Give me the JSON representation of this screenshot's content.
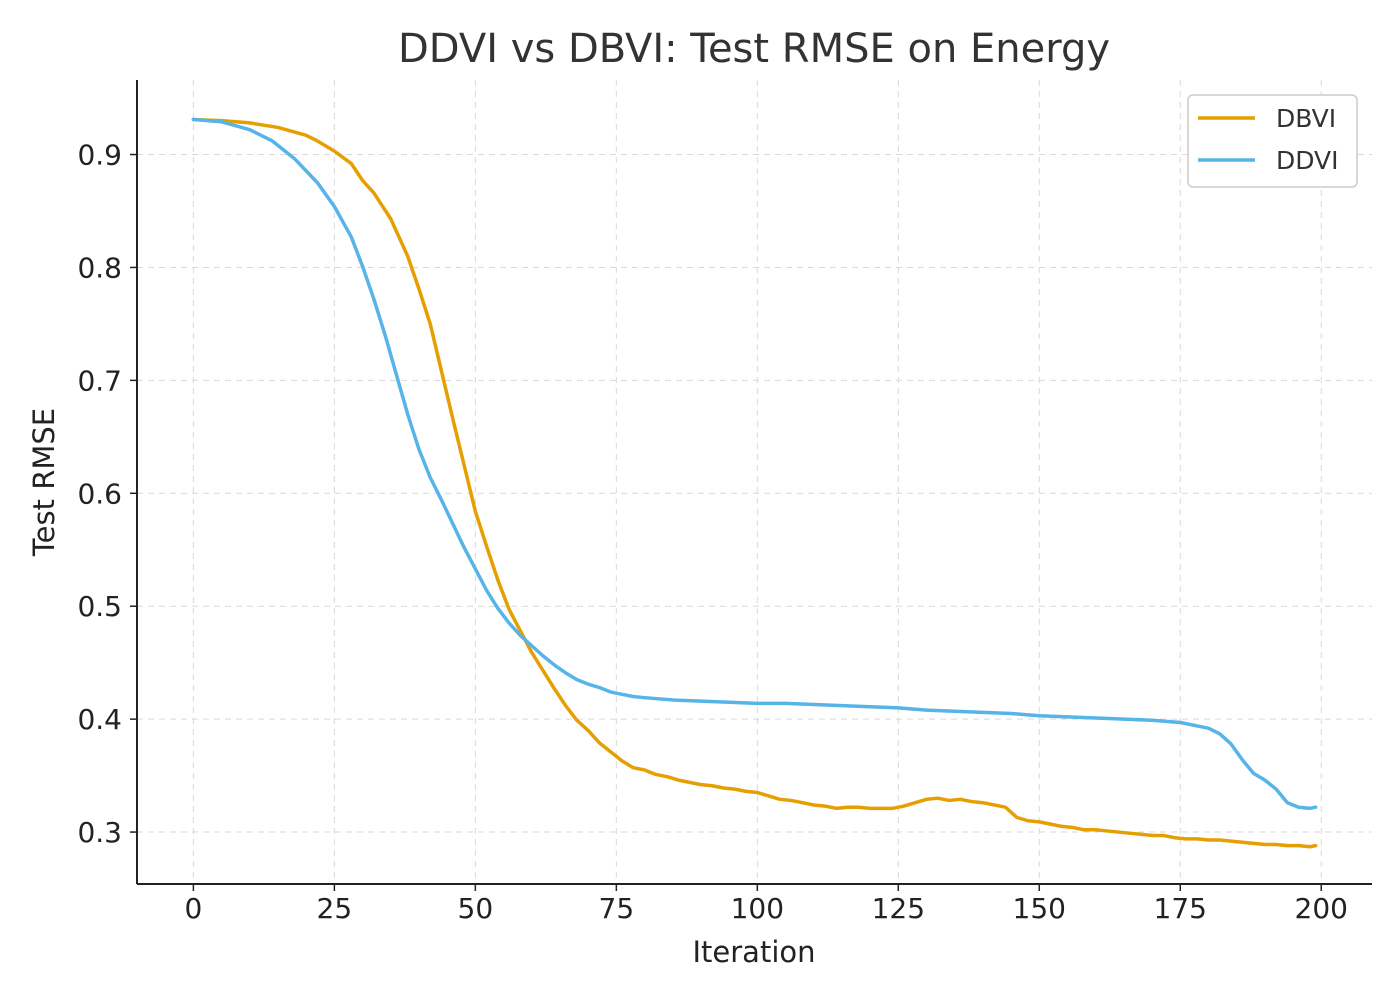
{
  "chart_data": {
    "type": "line",
    "title": "DDVI vs DBVI: Test RMSE on Energy",
    "xlabel": "Iteration",
    "ylabel": "Test RMSE",
    "xlim": [
      -10,
      209
    ],
    "ylim": [
      0.254,
      0.966
    ],
    "xticks": [
      0,
      25,
      50,
      75,
      100,
      125,
      150,
      175,
      200
    ],
    "xtick_labels": [
      "0",
      "25",
      "50",
      "75",
      "100",
      "125",
      "150",
      "175",
      "200"
    ],
    "yticks": [
      0.3,
      0.4,
      0.5,
      0.6,
      0.7,
      0.8,
      0.9
    ],
    "ytick_labels": [
      "0.3",
      "0.4",
      "0.5",
      "0.6",
      "0.7",
      "0.8",
      "0.9"
    ],
    "grid": true,
    "legend_position": "top-right",
    "series": [
      {
        "name": "DBVI",
        "color": "#E69F00",
        "x": [
          0,
          5,
          10,
          15,
          20,
          22,
          25,
          28,
          30,
          32,
          35,
          38,
          40,
          42,
          44,
          46,
          48,
          50,
          52,
          54,
          56,
          58,
          60,
          62,
          64,
          66,
          68,
          70,
          72,
          74,
          76,
          78,
          80,
          82,
          84,
          86,
          88,
          90,
          92,
          94,
          96,
          98,
          100,
          102,
          104,
          106,
          108,
          110,
          112,
          114,
          116,
          118,
          120,
          122,
          124,
          126,
          128,
          130,
          132,
          134,
          136,
          138,
          140,
          142,
          144,
          146,
          148,
          150,
          152,
          154,
          156,
          158,
          160,
          162,
          164,
          166,
          168,
          170,
          172,
          174,
          176,
          178,
          180,
          182,
          184,
          186,
          188,
          190,
          192,
          194,
          196,
          198,
          199
        ],
        "y": [
          0.931,
          0.93,
          0.928,
          0.924,
          0.917,
          0.912,
          0.903,
          0.892,
          0.877,
          0.866,
          0.843,
          0.81,
          0.781,
          0.75,
          0.708,
          0.666,
          0.625,
          0.584,
          0.553,
          0.523,
          0.497,
          0.478,
          0.459,
          0.443,
          0.427,
          0.412,
          0.399,
          0.39,
          0.379,
          0.371,
          0.363,
          0.357,
          0.355,
          0.351,
          0.349,
          0.346,
          0.344,
          0.342,
          0.341,
          0.339,
          0.338,
          0.336,
          0.335,
          0.332,
          0.329,
          0.328,
          0.326,
          0.324,
          0.323,
          0.321,
          0.322,
          0.322,
          0.321,
          0.321,
          0.321,
          0.323,
          0.326,
          0.329,
          0.33,
          0.328,
          0.329,
          0.327,
          0.326,
          0.324,
          0.322,
          0.313,
          0.31,
          0.309,
          0.307,
          0.305,
          0.304,
          0.302,
          0.302,
          0.301,
          0.3,
          0.299,
          0.298,
          0.297,
          0.297,
          0.295,
          0.294,
          0.294,
          0.293,
          0.293,
          0.292,
          0.291,
          0.29,
          0.289,
          0.289,
          0.288,
          0.288,
          0.287,
          0.288
        ]
      },
      {
        "name": "DDVI",
        "color": "#56B4E9",
        "x": [
          0,
          5,
          10,
          14,
          18,
          22,
          25,
          28,
          30,
          32,
          34,
          36,
          38,
          40,
          42,
          44,
          46,
          48,
          50,
          52,
          54,
          56,
          58,
          60,
          62,
          64,
          66,
          68,
          70,
          72,
          74,
          76,
          78,
          80,
          85,
          90,
          95,
          100,
          105,
          110,
          115,
          120,
          125,
          130,
          135,
          140,
          145,
          150,
          155,
          160,
          165,
          170,
          175,
          178,
          180,
          182,
          184,
          186,
          188,
          190,
          192,
          194,
          196,
          198,
          199
        ],
        "y": [
          0.931,
          0.929,
          0.922,
          0.912,
          0.896,
          0.875,
          0.854,
          0.827,
          0.801,
          0.772,
          0.74,
          0.705,
          0.67,
          0.639,
          0.614,
          0.594,
          0.573,
          0.552,
          0.533,
          0.514,
          0.498,
          0.485,
          0.474,
          0.465,
          0.456,
          0.448,
          0.441,
          0.435,
          0.431,
          0.428,
          0.424,
          0.422,
          0.42,
          0.419,
          0.417,
          0.416,
          0.415,
          0.414,
          0.414,
          0.413,
          0.412,
          0.411,
          0.41,
          0.408,
          0.407,
          0.406,
          0.405,
          0.403,
          0.402,
          0.401,
          0.4,
          0.399,
          0.397,
          0.394,
          0.392,
          0.387,
          0.378,
          0.364,
          0.352,
          0.346,
          0.338,
          0.326,
          0.322,
          0.321,
          0.322
        ]
      }
    ]
  }
}
